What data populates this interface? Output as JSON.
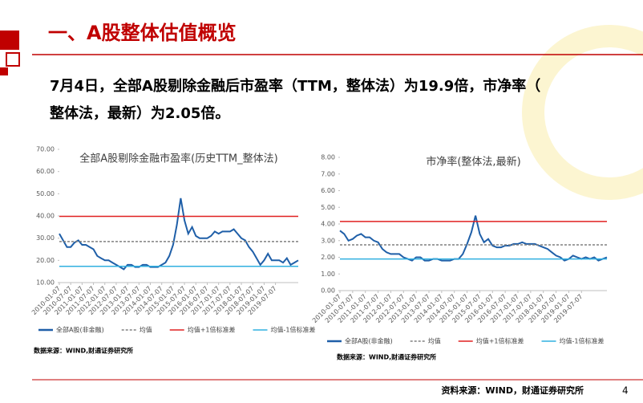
{
  "slide": {
    "title": "一、A股整体估值概览",
    "lines": [
      "7月4日，全部A股剔除金融后市盈率（TTM，整体法）为19.9倍，市净率（",
      "整体法，最新）为2.05倍。"
    ],
    "footer": "资料来源：WIND，财通证券研究所",
    "page": "4"
  },
  "chart_data": [
    {
      "type": "line",
      "title": "全部A股剔除金融市盈率(历史TTM_整体法)",
      "note": "数据来源：WIND,财通证券研究所",
      "categories": [
        "2010-01-07",
        null,
        null,
        "2010-07-07",
        null,
        null,
        "2011-01-07",
        null,
        null,
        "2011-07-07",
        null,
        null,
        "2012-01-07",
        null,
        null,
        "2012-07-07",
        null,
        null,
        "2013-01-07",
        null,
        null,
        "2013-07-07",
        null,
        null,
        "2014-01-07",
        null,
        null,
        "2014-07-07",
        null,
        null,
        "2015-01-07",
        null,
        null,
        "2015-07-07",
        null,
        null,
        "2016-01-07",
        null,
        null,
        "2016-07-07",
        null,
        null,
        "2017-01-07",
        null,
        null,
        "2017-07-07",
        null,
        null,
        "2018-01-07",
        null,
        null,
        "2018-07-07",
        null,
        null,
        "2019-01-07",
        null,
        null,
        "2019-07-07",
        null,
        null,
        null,
        null,
        null,
        null
      ],
      "ylim": [
        10,
        70
      ],
      "yticks": [
        {
          "value": 10,
          "label": "10.00"
        },
        {
          "value": 20,
          "label": "20.00"
        },
        {
          "value": 30,
          "label": "30.00"
        },
        {
          "value": 40,
          "label": "40.00"
        },
        {
          "value": 50,
          "label": "50.00"
        },
        {
          "value": 60,
          "label": "60.00"
        },
        {
          "value": 70,
          "label": "70.00"
        }
      ],
      "series": [
        {
          "name": "全部A股(非金融)",
          "color": "#1f5fa8",
          "values": [
            32,
            29,
            26,
            26,
            28,
            29,
            27,
            27,
            26,
            25,
            22,
            21,
            20,
            20,
            19,
            18,
            17,
            16,
            18,
            18,
            17,
            17,
            18,
            18,
            17,
            17,
            17,
            18,
            19,
            22,
            27,
            36,
            48,
            38,
            32,
            35,
            31,
            30,
            30,
            30,
            31,
            33,
            32,
            33,
            33,
            33,
            34,
            32,
            30,
            29,
            26,
            24,
            21,
            18,
            20,
            23,
            20,
            20,
            20,
            19,
            21,
            18,
            19,
            20
          ]
        },
        {
          "name": "均值",
          "color": "#808080",
          "value": 28.5,
          "dashed": true
        },
        {
          "name": "均值+1倍标准差",
          "color": "#e02020",
          "value": 39.8
        },
        {
          "name": "均值-1倍标准差",
          "color": "#30b0e0",
          "value": 17.3
        }
      ]
    },
    {
      "type": "line",
      "title": "市净率(整体法,最新)",
      "note": "数据来源：WIND,财通证券研究所",
      "categories": [
        "2010-01-07",
        null,
        null,
        "2010-07-07",
        null,
        null,
        "2011-01-07",
        null,
        null,
        "2011-07-07",
        null,
        null,
        "2012-01-07",
        null,
        null,
        "2012-07-07",
        null,
        null,
        "2013-01-07",
        null,
        null,
        "2013-07-07",
        null,
        null,
        "2014-01-07",
        null,
        null,
        "2014-07-07",
        null,
        null,
        "2015-01-07",
        null,
        null,
        "2015-07-07",
        null,
        null,
        "2016-01-07",
        null,
        null,
        "2016-07-07",
        null,
        null,
        "2017-01-07",
        null,
        null,
        "2017-07-07",
        null,
        null,
        "2018-01-07",
        null,
        null,
        "2018-07-07",
        null,
        null,
        "2019-01-07",
        null,
        null,
        "2019-07-07",
        null,
        null,
        null,
        null,
        null,
        null
      ],
      "ylim": [
        0,
        8
      ],
      "yticks": [
        {
          "value": 0,
          "label": "0.00"
        },
        {
          "value": 1,
          "label": "1.00"
        },
        {
          "value": 2,
          "label": "2.00"
        },
        {
          "value": 3,
          "label": "3.00"
        },
        {
          "value": 4,
          "label": "4.00"
        },
        {
          "value": 5,
          "label": "5.00"
        },
        {
          "value": 6,
          "label": "6.00"
        },
        {
          "value": 7,
          "label": "7.00"
        },
        {
          "value": 8,
          "label": "8.00"
        }
      ],
      "series": [
        {
          "name": "全部A股(非金融)",
          "color": "#1f5fa8",
          "values": [
            3.6,
            3.4,
            3.0,
            3.1,
            3.3,
            3.4,
            3.2,
            3.2,
            3.0,
            2.9,
            2.5,
            2.3,
            2.2,
            2.2,
            2.2,
            2.0,
            1.9,
            1.8,
            2.0,
            2.0,
            1.8,
            1.8,
            1.9,
            1.9,
            1.8,
            1.8,
            1.8,
            1.9,
            1.9,
            2.2,
            2.8,
            3.5,
            4.5,
            3.4,
            2.9,
            3.1,
            2.7,
            2.6,
            2.6,
            2.7,
            2.7,
            2.8,
            2.8,
            2.9,
            2.8,
            2.8,
            2.8,
            2.7,
            2.6,
            2.5,
            2.3,
            2.1,
            2.0,
            1.8,
            1.9,
            2.1,
            2.0,
            1.9,
            2.0,
            1.9,
            2.0,
            1.8,
            1.9,
            2.0
          ]
        },
        {
          "name": "均值",
          "color": "#808080",
          "value": 2.75,
          "dashed": true
        },
        {
          "name": "均值+1倍标准差",
          "color": "#e02020",
          "value": 4.15
        },
        {
          "name": "均值-1倍标准差",
          "color": "#30b0e0",
          "value": 1.9
        }
      ]
    }
  ]
}
